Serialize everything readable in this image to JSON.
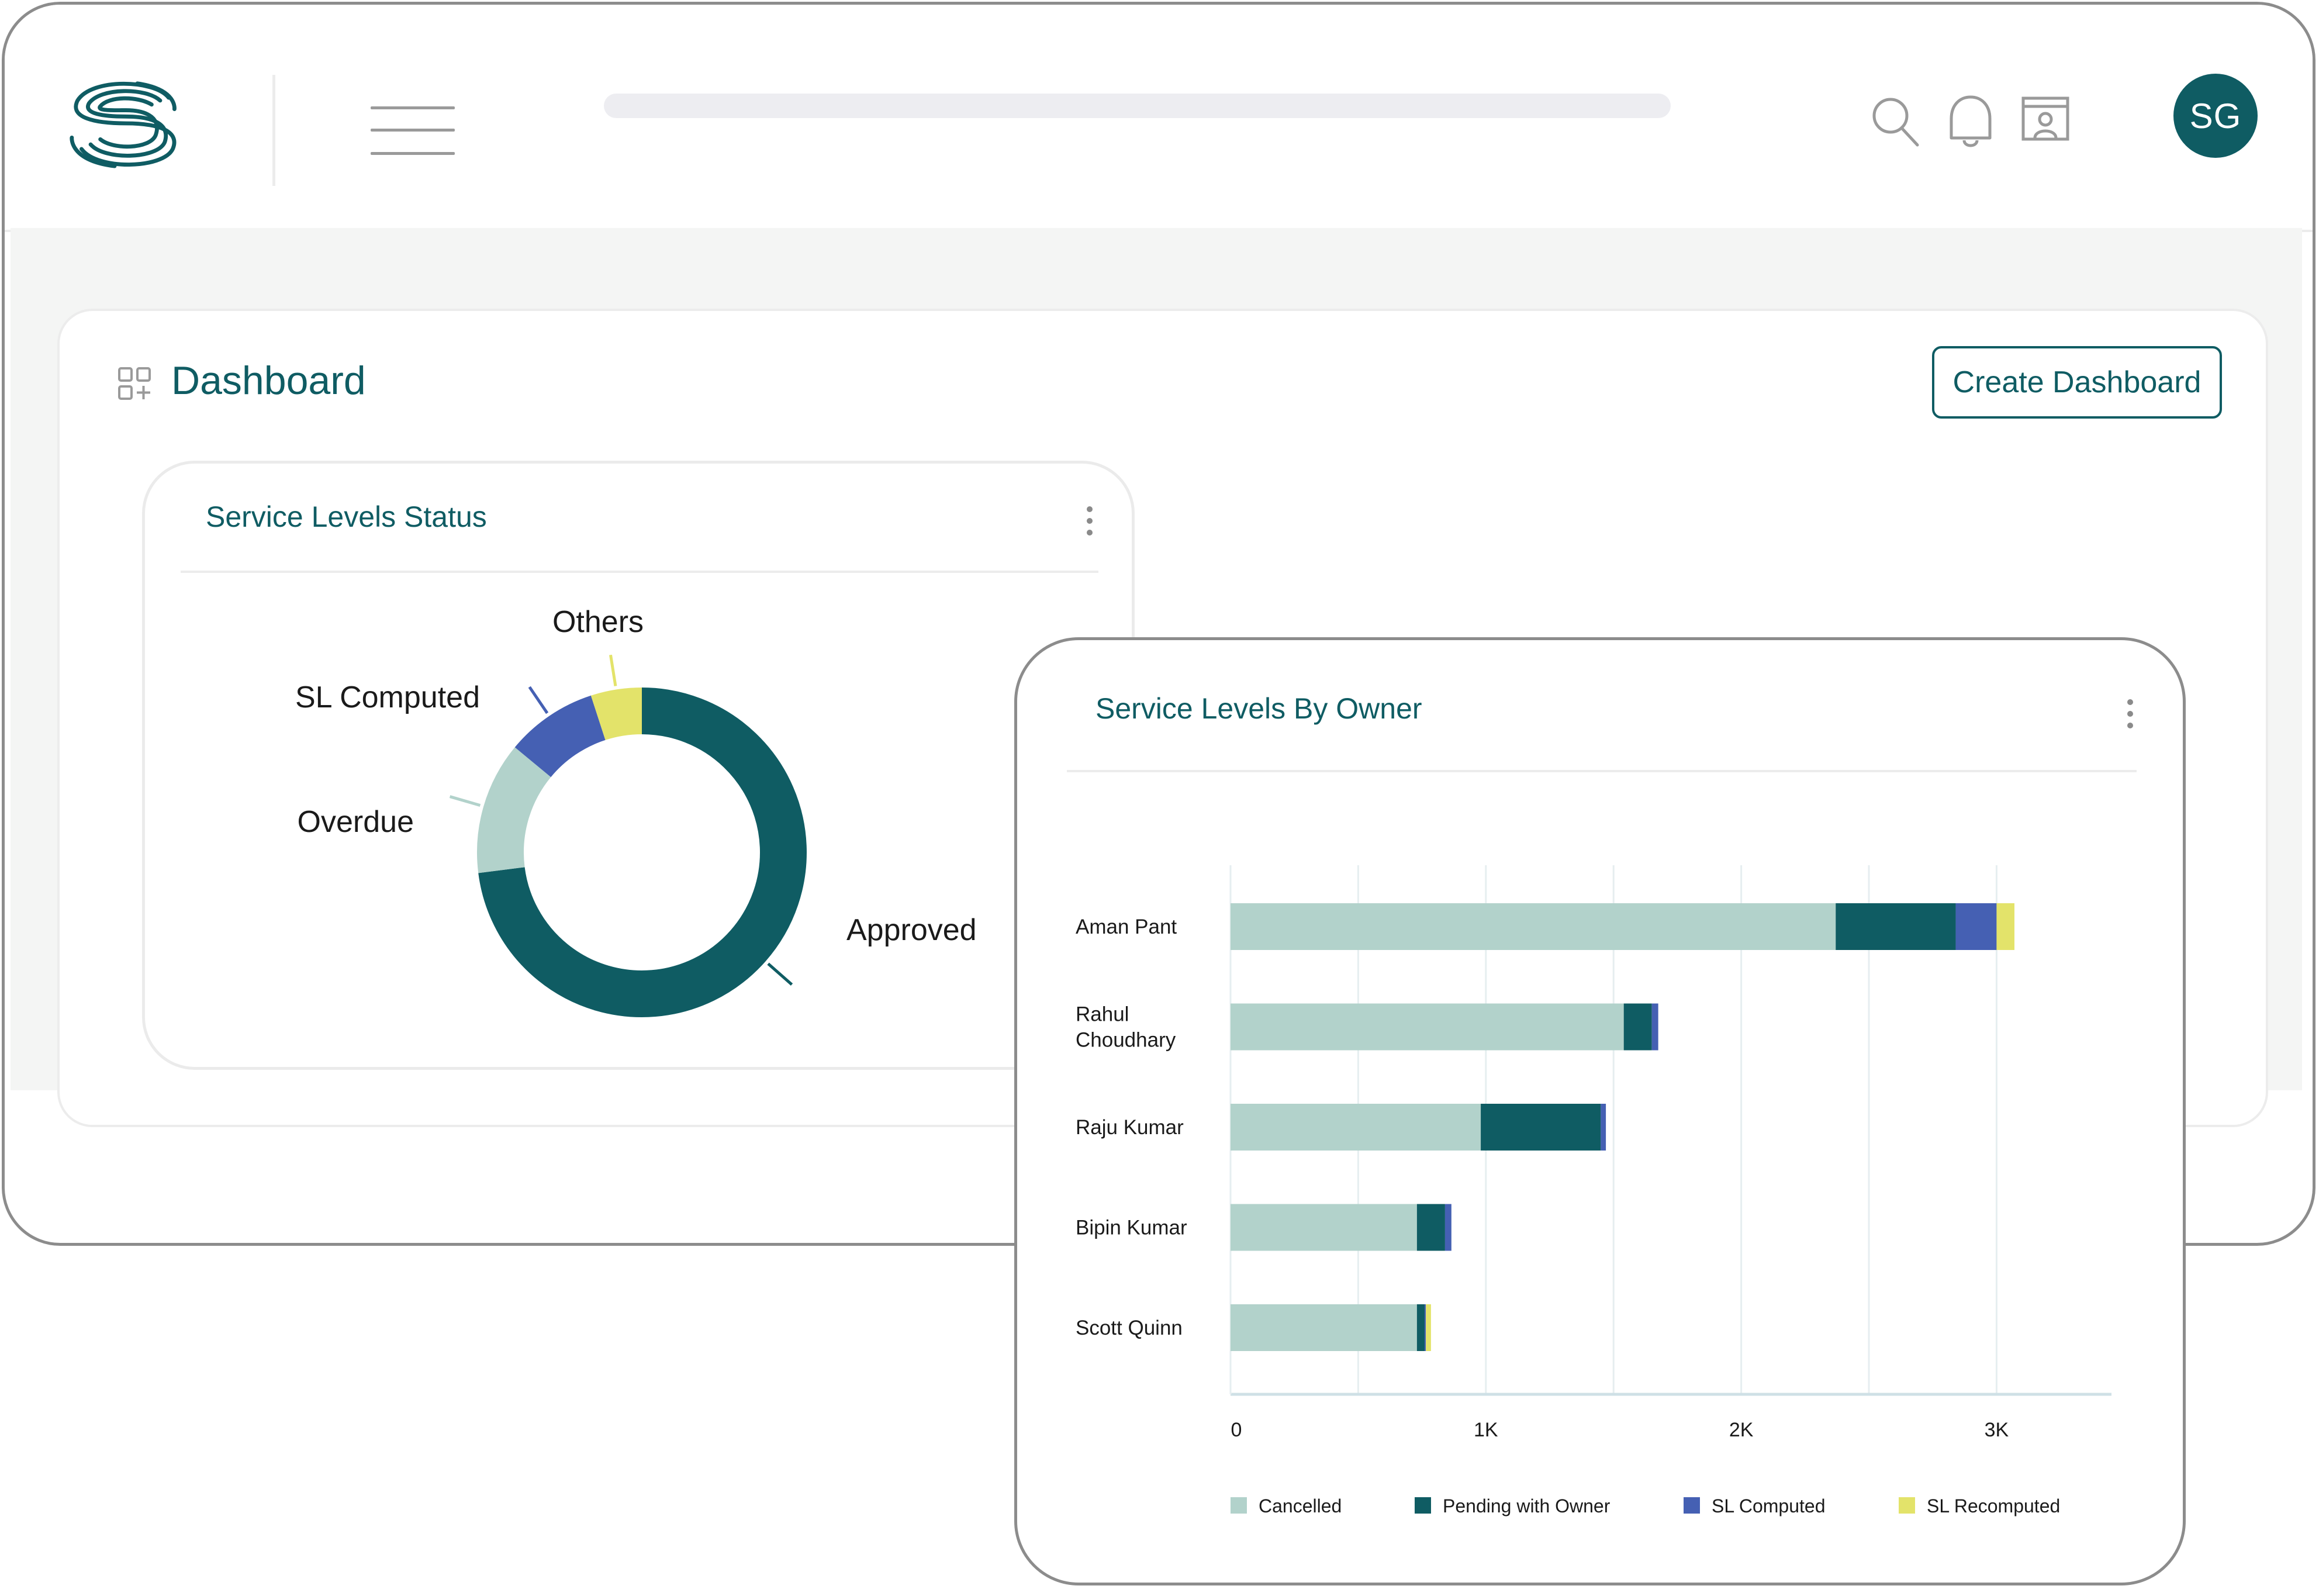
{
  "header": {
    "avatar_initials": "SG",
    "icons": [
      "brand-logo-icon",
      "hamburger-menu-icon",
      "search-icon",
      "bell-icon",
      "profile-window-icon"
    ]
  },
  "page": {
    "title": "Dashboard",
    "create_button": "Create Dashboard"
  },
  "colors": {
    "brand": "#0f5c63",
    "cancelled": "#b2d2cb",
    "pending": "#0f5c63",
    "sl_computed": "#4560b3",
    "sl_recomputed": "#e3e36a",
    "overdue": "#b2d2cb",
    "others": "#e3e36a"
  },
  "card_status": {
    "title": "Service Levels Status"
  },
  "card_owner": {
    "title": "Service Levels By Owner"
  },
  "chart_data": [
    {
      "type": "pie",
      "title": "Service Levels Status",
      "donut": true,
      "labels": [
        "Approved",
        "Overdue",
        "SL Computed",
        "Others"
      ],
      "values": [
        73,
        13,
        9,
        5
      ],
      "colors": [
        "#0f5c63",
        "#b2d2cb",
        "#4560b3",
        "#e3e36a"
      ]
    },
    {
      "type": "bar",
      "orientation": "horizontal",
      "stacked": true,
      "title": "Service Levels By Owner",
      "categories": [
        "Aman Pant",
        "Rahul\nChoudhary",
        "Raju Kumar",
        "Bipin Kumar",
        "Scott Quinn"
      ],
      "series": [
        {
          "name": "Cancelled",
          "color": "#b2d2cb",
          "values": [
            2370,
            1540,
            980,
            730,
            730
          ]
        },
        {
          "name": "Pending with Owner",
          "color": "#0f5c63",
          "values": [
            470,
            110,
            470,
            110,
            30
          ]
        },
        {
          "name": "SL Computed",
          "color": "#4560b3",
          "values": [
            160,
            25,
            20,
            25,
            5
          ]
        },
        {
          "name": "SL Recomputed",
          "color": "#e3e36a",
          "values": [
            70,
            0,
            0,
            0,
            20
          ]
        }
      ],
      "xlim": [
        0,
        3450
      ],
      "xticks": [
        0,
        1000,
        2000,
        3000
      ],
      "xtick_labels": [
        "0",
        "1K",
        "2K",
        "3K"
      ],
      "grid": true,
      "legend": "bottom"
    }
  ]
}
